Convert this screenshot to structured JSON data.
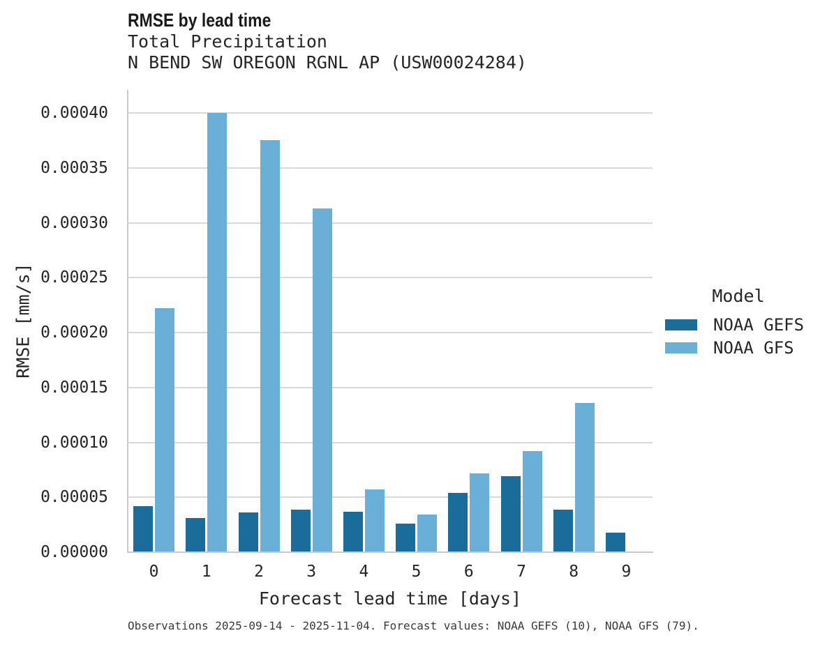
{
  "header": {
    "title": "RMSE by lead time",
    "subtitle1": "Total Precipitation",
    "subtitle2": "N BEND SW OREGON RGNL AP (USW00024284)"
  },
  "chart_data": {
    "type": "bar",
    "title": "RMSE by lead time",
    "subtitle": [
      "Total Precipitation",
      "N BEND SW OREGON RGNL AP (USW00024284)"
    ],
    "xlabel": "Forecast lead time [days]",
    "ylabel": "RMSE [mm/s]",
    "categories": [
      "0",
      "1",
      "2",
      "3",
      "4",
      "5",
      "6",
      "7",
      "8",
      "9"
    ],
    "series": [
      {
        "name": "NOAA GEFS",
        "color": "#1a6d9b",
        "values": [
          4.2e-05,
          3.1e-05,
          3.6e-05,
          3.9e-05,
          3.7e-05,
          2.6e-05,
          5.4e-05,
          6.9e-05,
          3.9e-05,
          1.8e-05
        ]
      },
      {
        "name": "NOAA GFS",
        "color": "#69afd7",
        "values": [
          0.000222,
          0.0004,
          0.000375,
          0.000313,
          5.7e-05,
          3.4e-05,
          7.2e-05,
          9.2e-05,
          0.000136,
          null
        ]
      }
    ],
    "ylim": [
      0,
      0.000421
    ],
    "yticks": [
      0,
      5e-05,
      0.0001,
      0.00015,
      0.0002,
      0.00025,
      0.0003,
      0.00035,
      0.0004
    ],
    "ytick_labels": [
      "0.00000",
      "0.00005",
      "0.00010",
      "0.00015",
      "0.00020",
      "0.00025",
      "0.00030",
      "0.00035",
      "0.00040"
    ],
    "grid": "horizontal",
    "legend_position": "center-right"
  },
  "legend": {
    "title": "Model",
    "items": [
      {
        "label": "NOAA GEFS",
        "color": "#1a6d9b"
      },
      {
        "label": "NOAA GFS",
        "color": "#69afd7"
      }
    ]
  },
  "caption": "Observations 2025-09-14 - 2025-11-04. Forecast values: NOAA GEFS (10), NOAA GFS (79)."
}
